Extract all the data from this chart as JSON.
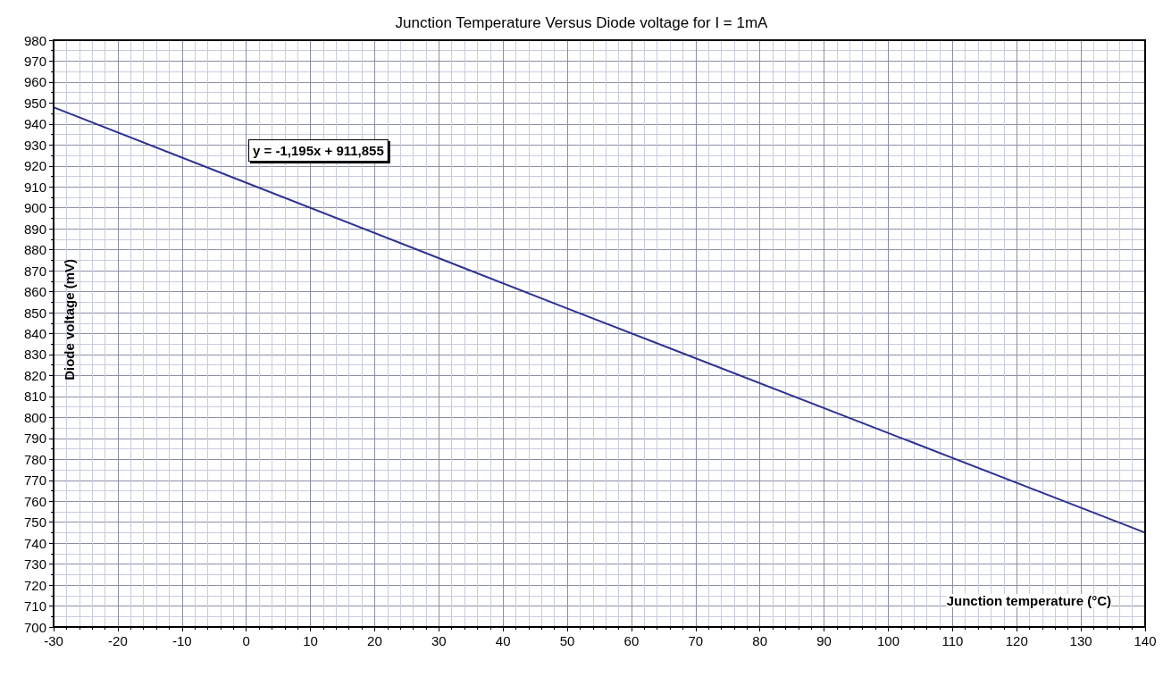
{
  "chart_data": {
    "type": "line",
    "title": "Junction Temperature Versus Diode voltage for I = 1mA",
    "xlabel": "Junction temperature (°C)",
    "ylabel": "Diode voltage (mV)",
    "annotations": [
      "y = -1,195x + 911,855"
    ],
    "series": [
      {
        "color": "#2e3192",
        "x": [
          -30,
          50,
          140
        ],
        "values": [
          948,
          852,
          745
        ]
      }
    ],
    "xlim": [
      -30,
      140
    ],
    "xticks": [
      -30,
      -20,
      -10,
      0,
      10,
      20,
      30,
      40,
      50,
      60,
      70,
      80,
      90,
      100,
      110,
      120,
      130,
      140
    ],
    "ylim": [
      700,
      980
    ],
    "yticks": [
      700,
      710,
      720,
      730,
      740,
      750,
      760,
      770,
      780,
      790,
      800,
      810,
      820,
      830,
      840,
      850,
      860,
      870,
      880,
      890,
      900,
      910,
      920,
      930,
      940,
      950,
      960,
      970,
      980
    ],
    "grid": true,
    "marker": "none",
    "line_style": "solid"
  }
}
